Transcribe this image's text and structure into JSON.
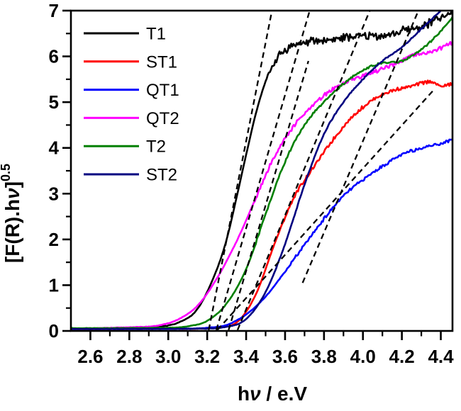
{
  "figure": {
    "background": "#ffffff",
    "axis_color": "#000000"
  },
  "chart_data": {
    "type": "line",
    "title": "",
    "xlabel": "hν / e.V",
    "ylabel": "[F(R).hν]^0.5",
    "ylabel_base": "[F(R).hν]",
    "ylabel_superscript": "0.5",
    "xlim": [
      2.5,
      4.46
    ],
    "ylim": [
      0,
      7
    ],
    "x_major_ticks": [
      2.6,
      2.8,
      3.0,
      3.2,
      3.4,
      3.6,
      3.8,
      4.0,
      4.2,
      4.4
    ],
    "x_tick_labels": [
      "2.6",
      "2.8",
      "3.0",
      "3.2",
      "3.4",
      "3.6",
      "3.8",
      "4.0",
      "4.2",
      "4.4"
    ],
    "x_minor_ticks": [
      2.7,
      2.9,
      3.1,
      3.3,
      3.5,
      3.7,
      3.9,
      4.1,
      4.3
    ],
    "y_major_ticks": [
      0,
      1,
      2,
      3,
      4,
      5,
      6,
      7
    ],
    "y_tick_labels": [
      "0",
      "1",
      "2",
      "3",
      "4",
      "5",
      "6",
      "7"
    ],
    "y_minor_ticks": [
      0.5,
      1.5,
      2.5,
      3.5,
      4.5,
      5.5,
      6.5
    ],
    "grid": false,
    "legend_position": "upper-left",
    "series": [
      {
        "name": "T1",
        "color": "#000000",
        "noise_amp": 0.1,
        "noise_from": 5.3,
        "seed": 7,
        "points": [
          [
            2.5,
            0.05
          ],
          [
            2.8,
            0.06
          ],
          [
            2.95,
            0.09
          ],
          [
            3.05,
            0.18
          ],
          [
            3.15,
            0.48
          ],
          [
            3.25,
            1.35
          ],
          [
            3.3,
            2.0
          ],
          [
            3.35,
            2.9
          ],
          [
            3.4,
            3.85
          ],
          [
            3.45,
            4.75
          ],
          [
            3.5,
            5.45
          ],
          [
            3.55,
            5.9
          ],
          [
            3.62,
            6.2
          ],
          [
            3.7,
            6.3
          ],
          [
            3.8,
            6.35
          ],
          [
            3.9,
            6.4
          ],
          [
            4.0,
            6.45
          ],
          [
            4.1,
            6.45
          ],
          [
            4.2,
            6.55
          ],
          [
            4.3,
            6.65
          ],
          [
            4.38,
            6.8
          ],
          [
            4.46,
            6.95
          ]
        ]
      },
      {
        "name": "ST1",
        "color": "#FF0000",
        "noise_amp": 0.04,
        "noise_from": 2.0,
        "seed": 3,
        "points": [
          [
            2.5,
            0.04
          ],
          [
            3.15,
            0.05
          ],
          [
            3.25,
            0.07
          ],
          [
            3.35,
            0.18
          ],
          [
            3.45,
            0.8
          ],
          [
            3.55,
            1.95
          ],
          [
            3.65,
            2.95
          ],
          [
            3.75,
            3.6
          ],
          [
            3.85,
            4.2
          ],
          [
            3.95,
            4.7
          ],
          [
            4.05,
            5.05
          ],
          [
            4.15,
            5.25
          ],
          [
            4.25,
            5.35
          ],
          [
            4.35,
            5.45
          ],
          [
            4.4,
            5.35
          ],
          [
            4.46,
            5.4
          ]
        ]
      },
      {
        "name": "QT1",
        "color": "#0000FF",
        "noise_amp": 0.035,
        "noise_from": 1.0,
        "seed": 5,
        "points": [
          [
            2.5,
            0.04
          ],
          [
            3.1,
            0.05
          ],
          [
            3.2,
            0.07
          ],
          [
            3.3,
            0.13
          ],
          [
            3.4,
            0.36
          ],
          [
            3.5,
            0.75
          ],
          [
            3.6,
            1.3
          ],
          [
            3.7,
            1.88
          ],
          [
            3.8,
            2.45
          ],
          [
            3.9,
            2.95
          ],
          [
            4.0,
            3.3
          ],
          [
            4.1,
            3.6
          ],
          [
            4.2,
            3.85
          ],
          [
            4.3,
            4.0
          ],
          [
            4.4,
            4.1
          ],
          [
            4.46,
            4.18
          ]
        ]
      },
      {
        "name": "QT2",
        "color": "#FF00FF",
        "noise_amp": 0.05,
        "noise_from": 2.5,
        "seed": 11,
        "points": [
          [
            2.5,
            0.05
          ],
          [
            2.8,
            0.08
          ],
          [
            2.95,
            0.12
          ],
          [
            3.05,
            0.25
          ],
          [
            3.15,
            0.55
          ],
          [
            3.25,
            1.15
          ],
          [
            3.35,
            1.95
          ],
          [
            3.45,
            2.9
          ],
          [
            3.55,
            3.85
          ],
          [
            3.65,
            4.5
          ],
          [
            3.75,
            4.95
          ],
          [
            3.85,
            5.3
          ],
          [
            3.95,
            5.5
          ],
          [
            4.05,
            5.65
          ],
          [
            4.15,
            5.8
          ],
          [
            4.25,
            6.0
          ],
          [
            4.35,
            6.1
          ],
          [
            4.46,
            6.3
          ]
        ]
      },
      {
        "name": "T2",
        "color": "#008000",
        "noise_amp": 0.025,
        "noise_from": 1.5,
        "seed": 13,
        "points": [
          [
            2.5,
            0.06
          ],
          [
            3.0,
            0.07
          ],
          [
            3.1,
            0.1
          ],
          [
            3.2,
            0.22
          ],
          [
            3.3,
            0.6
          ],
          [
            3.4,
            1.35
          ],
          [
            3.5,
            2.55
          ],
          [
            3.6,
            3.7
          ],
          [
            3.7,
            4.5
          ],
          [
            3.8,
            5.0
          ],
          [
            3.9,
            5.4
          ],
          [
            4.0,
            5.7
          ],
          [
            4.1,
            5.85
          ],
          [
            4.2,
            5.9
          ],
          [
            4.3,
            6.15
          ],
          [
            4.4,
            6.55
          ],
          [
            4.46,
            6.85
          ]
        ]
      },
      {
        "name": "ST2",
        "color": "#000080",
        "noise_amp": 0.015,
        "noise_from": 1.0,
        "seed": 17,
        "points": [
          [
            2.5,
            0.04
          ],
          [
            3.15,
            0.05
          ],
          [
            3.3,
            0.09
          ],
          [
            3.4,
            0.26
          ],
          [
            3.5,
            0.85
          ],
          [
            3.6,
            1.9
          ],
          [
            3.7,
            3.2
          ],
          [
            3.8,
            4.3
          ],
          [
            3.9,
            5.0
          ],
          [
            4.0,
            5.5
          ],
          [
            4.1,
            5.9
          ],
          [
            4.2,
            6.2
          ],
          [
            4.3,
            6.6
          ],
          [
            4.4,
            7.0
          ],
          [
            4.44,
            7.15
          ]
        ]
      }
    ],
    "tangent_lines": [
      {
        "touches": "T1",
        "color": "#000000",
        "dash": true,
        "x1": 3.208,
        "y1": 0.02,
        "x2": 3.535,
        "y2": 7.05
      },
      {
        "touches": "QT2",
        "color": "#000000",
        "dash": true,
        "x1": 3.247,
        "y1": 0.02,
        "x2": 3.73,
        "y2": 7.05
      },
      {
        "touches": "T2",
        "color": "#000000",
        "dash": true,
        "x1": 3.31,
        "y1": 0.02,
        "x2": 3.72,
        "y2": 5.9
      },
      {
        "touches": "ST1",
        "color": "#000000",
        "dash": true,
        "x1": 3.356,
        "y1": 0.02,
        "x2": 4.04,
        "y2": 7.05
      },
      {
        "touches": "QT1",
        "color": "#000000",
        "dash": true,
        "x1": 3.252,
        "y1": 0.02,
        "x2": 4.36,
        "y2": 5.25
      },
      {
        "touches": "ST2",
        "color": "#000000",
        "dash": true,
        "x1": 3.69,
        "y1": 1.05,
        "x2": 4.29,
        "y2": 7.05
      }
    ],
    "legend_entries": [
      "T1",
      "ST1",
      "QT1",
      "QT2",
      "T2",
      "ST2"
    ]
  }
}
